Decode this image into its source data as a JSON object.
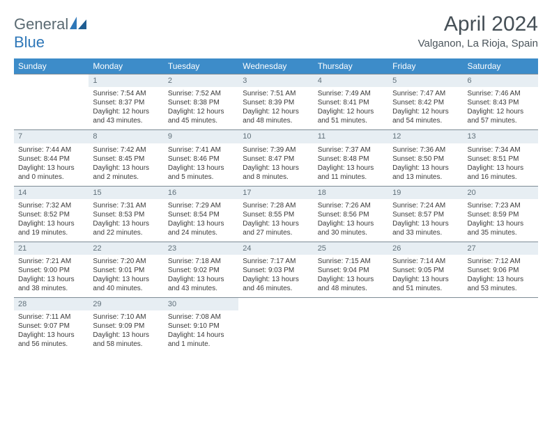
{
  "brand": {
    "general": "General",
    "blue": "Blue"
  },
  "title": "April 2024",
  "location": "Valganon, La Rioja, Spain",
  "day_headers": [
    "Sunday",
    "Monday",
    "Tuesday",
    "Wednesday",
    "Thursday",
    "Friday",
    "Saturday"
  ],
  "header_bg": "#3d8cc9",
  "header_fg": "#ffffff",
  "daynum_bg": "#e7eef3",
  "daynum_border": "#7d8b95",
  "weeks": [
    {
      "days": [
        {
          "num": "",
          "empty": true
        },
        {
          "num": "1",
          "sunrise": "Sunrise: 7:54 AM",
          "sunset": "Sunset: 8:37 PM",
          "daylight1": "Daylight: 12 hours",
          "daylight2": "and 43 minutes."
        },
        {
          "num": "2",
          "sunrise": "Sunrise: 7:52 AM",
          "sunset": "Sunset: 8:38 PM",
          "daylight1": "Daylight: 12 hours",
          "daylight2": "and 45 minutes."
        },
        {
          "num": "3",
          "sunrise": "Sunrise: 7:51 AM",
          "sunset": "Sunset: 8:39 PM",
          "daylight1": "Daylight: 12 hours",
          "daylight2": "and 48 minutes."
        },
        {
          "num": "4",
          "sunrise": "Sunrise: 7:49 AM",
          "sunset": "Sunset: 8:41 PM",
          "daylight1": "Daylight: 12 hours",
          "daylight2": "and 51 minutes."
        },
        {
          "num": "5",
          "sunrise": "Sunrise: 7:47 AM",
          "sunset": "Sunset: 8:42 PM",
          "daylight1": "Daylight: 12 hours",
          "daylight2": "and 54 minutes."
        },
        {
          "num": "6",
          "sunrise": "Sunrise: 7:46 AM",
          "sunset": "Sunset: 8:43 PM",
          "daylight1": "Daylight: 12 hours",
          "daylight2": "and 57 minutes."
        }
      ]
    },
    {
      "days": [
        {
          "num": "7",
          "sunrise": "Sunrise: 7:44 AM",
          "sunset": "Sunset: 8:44 PM",
          "daylight1": "Daylight: 13 hours",
          "daylight2": "and 0 minutes."
        },
        {
          "num": "8",
          "sunrise": "Sunrise: 7:42 AM",
          "sunset": "Sunset: 8:45 PM",
          "daylight1": "Daylight: 13 hours",
          "daylight2": "and 2 minutes."
        },
        {
          "num": "9",
          "sunrise": "Sunrise: 7:41 AM",
          "sunset": "Sunset: 8:46 PM",
          "daylight1": "Daylight: 13 hours",
          "daylight2": "and 5 minutes."
        },
        {
          "num": "10",
          "sunrise": "Sunrise: 7:39 AM",
          "sunset": "Sunset: 8:47 PM",
          "daylight1": "Daylight: 13 hours",
          "daylight2": "and 8 minutes."
        },
        {
          "num": "11",
          "sunrise": "Sunrise: 7:37 AM",
          "sunset": "Sunset: 8:48 PM",
          "daylight1": "Daylight: 13 hours",
          "daylight2": "and 11 minutes."
        },
        {
          "num": "12",
          "sunrise": "Sunrise: 7:36 AM",
          "sunset": "Sunset: 8:50 PM",
          "daylight1": "Daylight: 13 hours",
          "daylight2": "and 13 minutes."
        },
        {
          "num": "13",
          "sunrise": "Sunrise: 7:34 AM",
          "sunset": "Sunset: 8:51 PM",
          "daylight1": "Daylight: 13 hours",
          "daylight2": "and 16 minutes."
        }
      ]
    },
    {
      "days": [
        {
          "num": "14",
          "sunrise": "Sunrise: 7:32 AM",
          "sunset": "Sunset: 8:52 PM",
          "daylight1": "Daylight: 13 hours",
          "daylight2": "and 19 minutes."
        },
        {
          "num": "15",
          "sunrise": "Sunrise: 7:31 AM",
          "sunset": "Sunset: 8:53 PM",
          "daylight1": "Daylight: 13 hours",
          "daylight2": "and 22 minutes."
        },
        {
          "num": "16",
          "sunrise": "Sunrise: 7:29 AM",
          "sunset": "Sunset: 8:54 PM",
          "daylight1": "Daylight: 13 hours",
          "daylight2": "and 24 minutes."
        },
        {
          "num": "17",
          "sunrise": "Sunrise: 7:28 AM",
          "sunset": "Sunset: 8:55 PM",
          "daylight1": "Daylight: 13 hours",
          "daylight2": "and 27 minutes."
        },
        {
          "num": "18",
          "sunrise": "Sunrise: 7:26 AM",
          "sunset": "Sunset: 8:56 PM",
          "daylight1": "Daylight: 13 hours",
          "daylight2": "and 30 minutes."
        },
        {
          "num": "19",
          "sunrise": "Sunrise: 7:24 AM",
          "sunset": "Sunset: 8:57 PM",
          "daylight1": "Daylight: 13 hours",
          "daylight2": "and 33 minutes."
        },
        {
          "num": "20",
          "sunrise": "Sunrise: 7:23 AM",
          "sunset": "Sunset: 8:59 PM",
          "daylight1": "Daylight: 13 hours",
          "daylight2": "and 35 minutes."
        }
      ]
    },
    {
      "days": [
        {
          "num": "21",
          "sunrise": "Sunrise: 7:21 AM",
          "sunset": "Sunset: 9:00 PM",
          "daylight1": "Daylight: 13 hours",
          "daylight2": "and 38 minutes."
        },
        {
          "num": "22",
          "sunrise": "Sunrise: 7:20 AM",
          "sunset": "Sunset: 9:01 PM",
          "daylight1": "Daylight: 13 hours",
          "daylight2": "and 40 minutes."
        },
        {
          "num": "23",
          "sunrise": "Sunrise: 7:18 AM",
          "sunset": "Sunset: 9:02 PM",
          "daylight1": "Daylight: 13 hours",
          "daylight2": "and 43 minutes."
        },
        {
          "num": "24",
          "sunrise": "Sunrise: 7:17 AM",
          "sunset": "Sunset: 9:03 PM",
          "daylight1": "Daylight: 13 hours",
          "daylight2": "and 46 minutes."
        },
        {
          "num": "25",
          "sunrise": "Sunrise: 7:15 AM",
          "sunset": "Sunset: 9:04 PM",
          "daylight1": "Daylight: 13 hours",
          "daylight2": "and 48 minutes."
        },
        {
          "num": "26",
          "sunrise": "Sunrise: 7:14 AM",
          "sunset": "Sunset: 9:05 PM",
          "daylight1": "Daylight: 13 hours",
          "daylight2": "and 51 minutes."
        },
        {
          "num": "27",
          "sunrise": "Sunrise: 7:12 AM",
          "sunset": "Sunset: 9:06 PM",
          "daylight1": "Daylight: 13 hours",
          "daylight2": "and 53 minutes."
        }
      ]
    },
    {
      "days": [
        {
          "num": "28",
          "sunrise": "Sunrise: 7:11 AM",
          "sunset": "Sunset: 9:07 PM",
          "daylight1": "Daylight: 13 hours",
          "daylight2": "and 56 minutes."
        },
        {
          "num": "29",
          "sunrise": "Sunrise: 7:10 AM",
          "sunset": "Sunset: 9:09 PM",
          "daylight1": "Daylight: 13 hours",
          "daylight2": "and 58 minutes."
        },
        {
          "num": "30",
          "sunrise": "Sunrise: 7:08 AM",
          "sunset": "Sunset: 9:10 PM",
          "daylight1": "Daylight: 14 hours",
          "daylight2": "and 1 minute."
        },
        {
          "num": "",
          "empty": true
        },
        {
          "num": "",
          "empty": true
        },
        {
          "num": "",
          "empty": true
        },
        {
          "num": "",
          "empty": true
        }
      ]
    }
  ]
}
